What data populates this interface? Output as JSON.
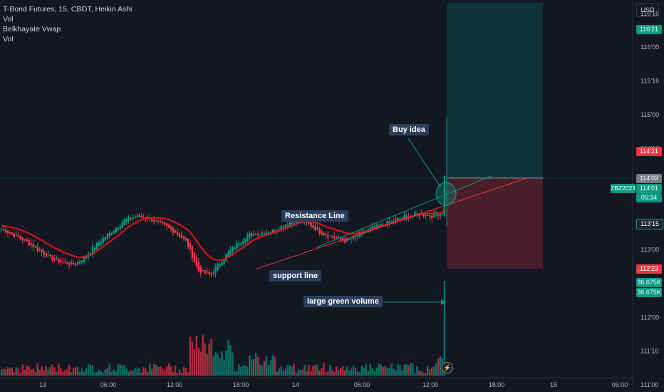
{
  "header": {
    "title": "T-Bond Futures, 15, CBOT, Heikin Ashi",
    "indicators": [
      "Vol",
      "Belkhayate Vwap",
      "Vol"
    ],
    "currency": "USD"
  },
  "annotations": {
    "buy_idea": "Buy idea",
    "resistance": "Resistance Line",
    "support": "support line",
    "volume_note": "large green volume"
  },
  "price_tags": {
    "target": "116'21",
    "upper": "114'21",
    "prev": "114'02",
    "symbol": "ZBZ2023",
    "last": "114'01",
    "countdown": "05:34",
    "mid": "113'15",
    "stop": "112'23",
    "vol1": "36.675K",
    "vol2": "36.675K"
  },
  "colors": {
    "up": "#089981",
    "down": "#f23645",
    "vwap": "#e8121c",
    "background": "#131722"
  },
  "icons": {
    "replay": "bolt-icon"
  },
  "chart_data": {
    "type": "candlestick",
    "title": "T-Bond Futures, 15, CBOT, Heikin Ashi",
    "y_ticks": [
      "116'16",
      "116'00",
      "115'16",
      "115'00",
      "114'16",
      "113'00",
      "112'16",
      "112'00",
      "111'16",
      "111'00"
    ],
    "x_ticks": [
      "13",
      "06:00",
      "12:00",
      "18:00",
      "14",
      "06:00",
      "12:00",
      "18:00",
      "15",
      "06:00"
    ],
    "y_range_32nds": [
      3550,
      3733
    ],
    "price_path_32nds": [
      3626,
      3623,
      3620,
      3616,
      3612,
      3610,
      3609,
      3614,
      3620,
      3625,
      3630,
      3632,
      3631,
      3628,
      3625,
      3620,
      3606,
      3604,
      3612,
      3618,
      3623,
      3624,
      3625,
      3628,
      3630,
      3628,
      3624,
      3622,
      3620,
      3623,
      3626,
      3628,
      3630,
      3632,
      3633,
      3632,
      3634,
      3651
    ],
    "trade": {
      "entry": "114'02",
      "target": "116'21",
      "stop": "112'23"
    },
    "series": [
      {
        "name": "Vol",
        "last": "36.675K"
      }
    ]
  }
}
